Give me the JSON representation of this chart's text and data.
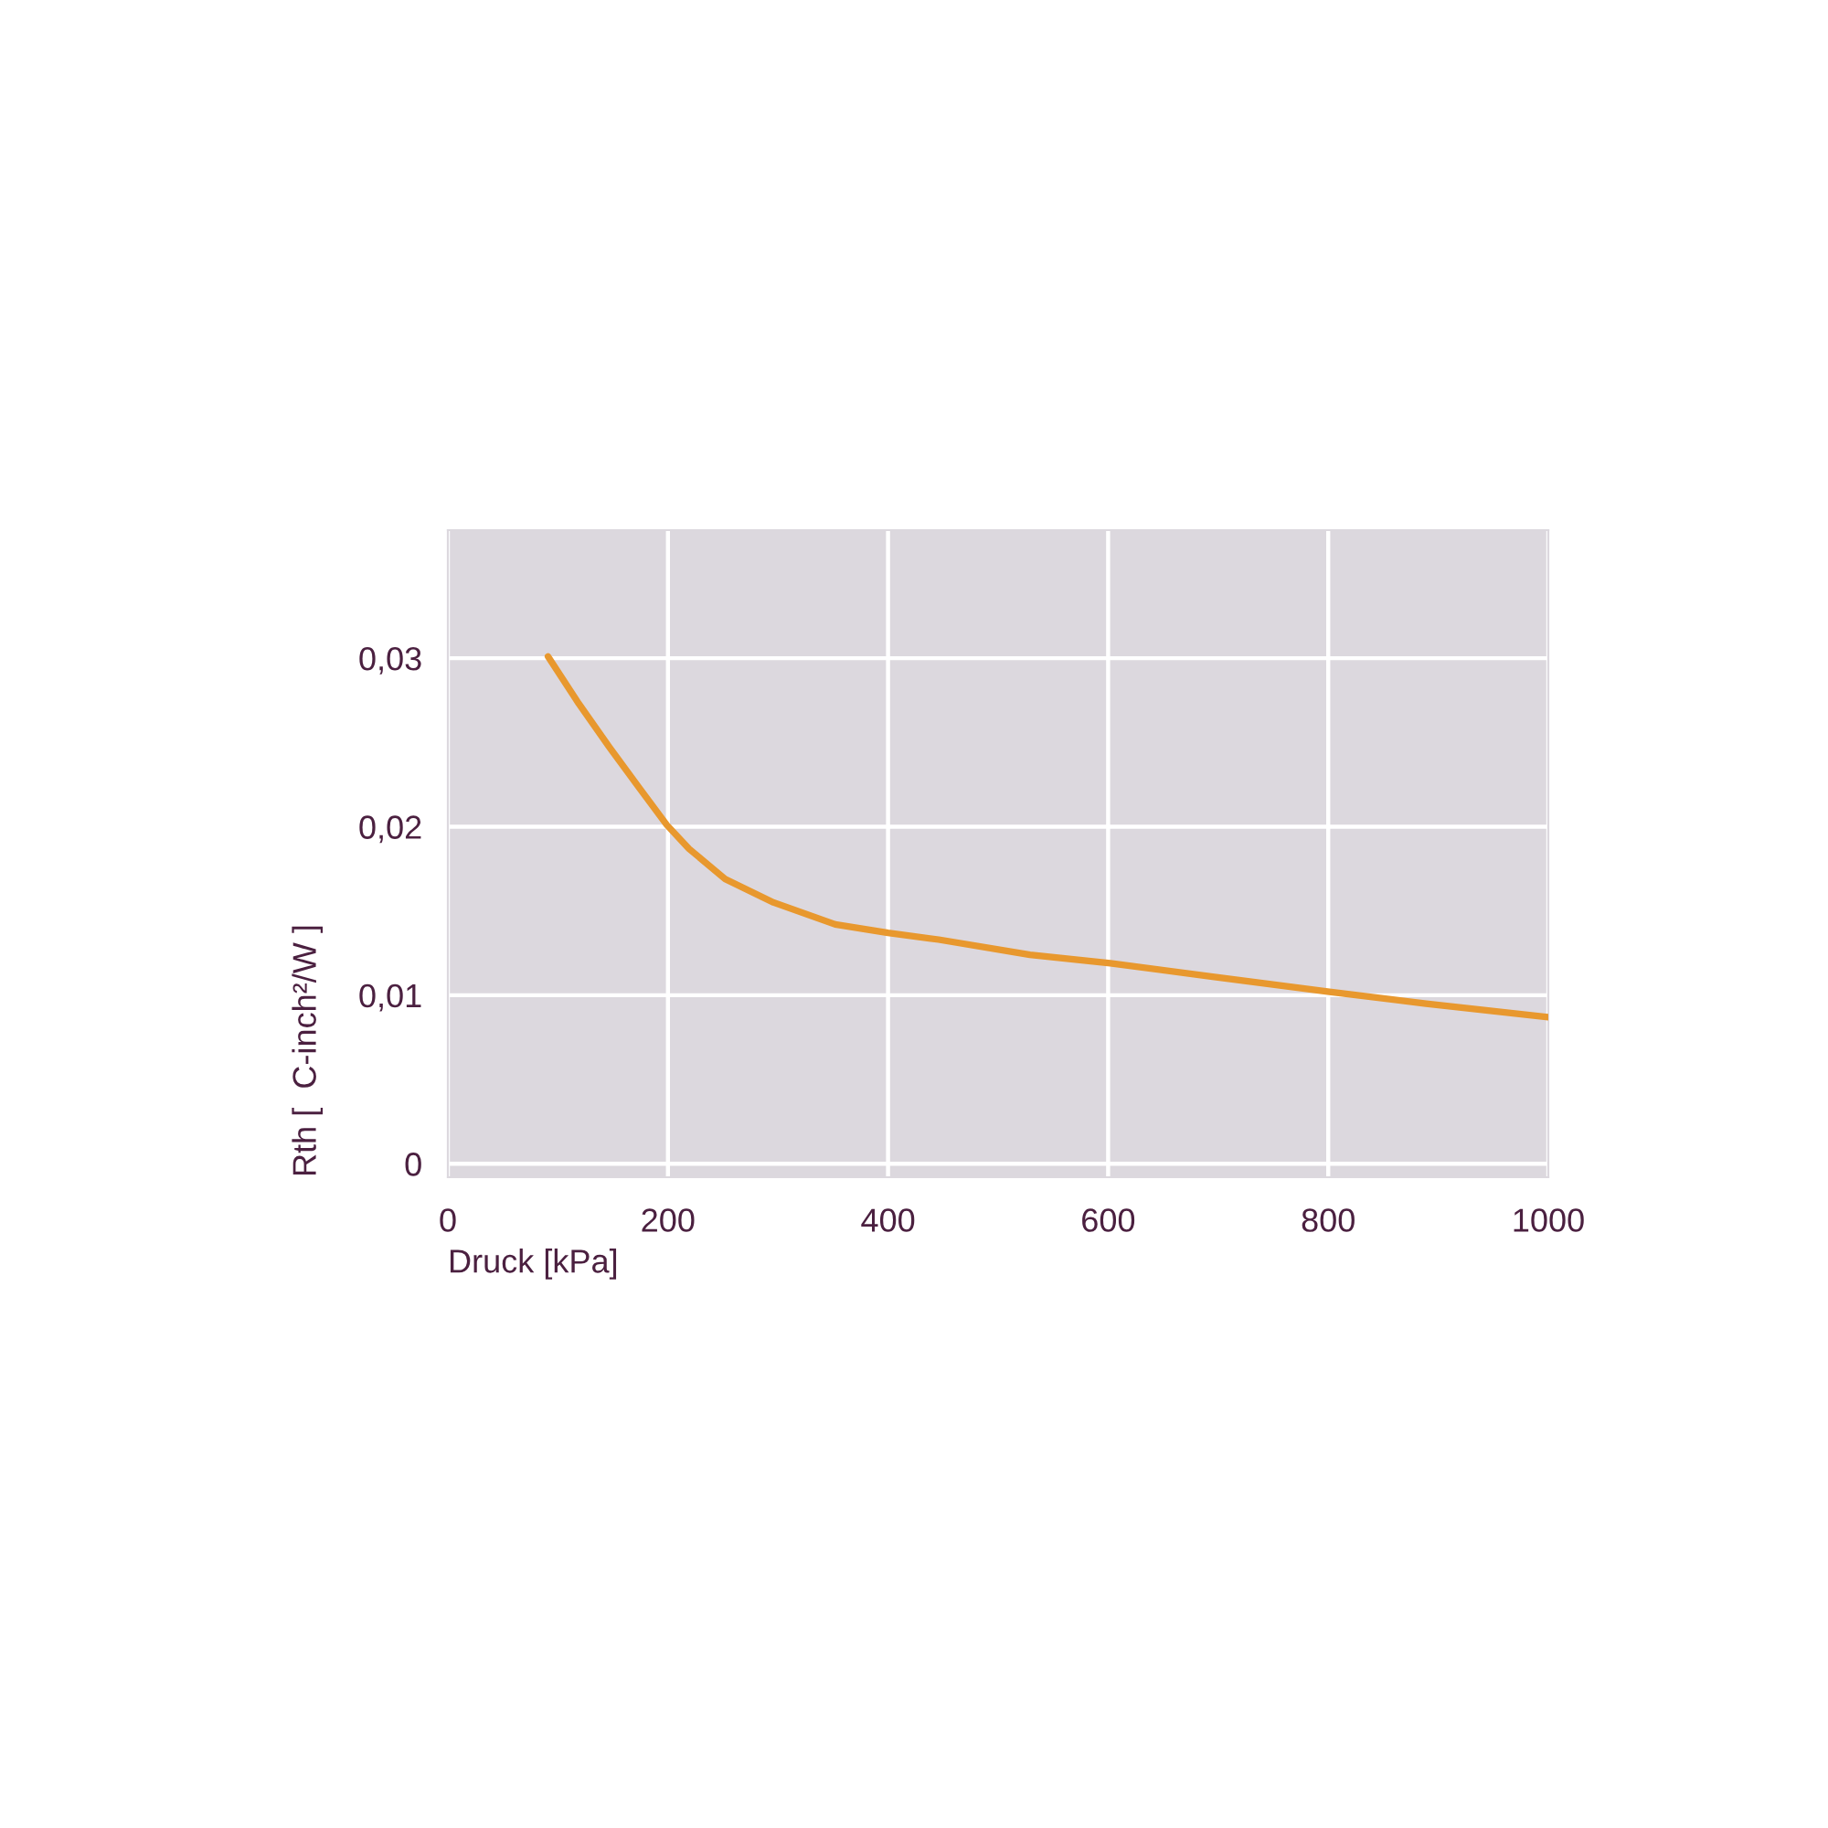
{
  "chart_data": {
    "type": "line",
    "xlabel": "Druck [kPa]",
    "ylabel": "Rth [  C-inch²/W ]",
    "x": [
      91,
      119,
      147,
      174,
      199,
      219,
      252,
      296,
      352,
      400,
      446,
      529,
      602,
      695,
      801,
      889,
      1000
    ],
    "series": [
      {
        "color": "#e8982e",
        "values": [
          0.0301,
          0.0273,
          0.0247,
          0.0223,
          0.0201,
          0.0187,
          0.0169,
          0.0155,
          0.0142,
          0.0137,
          0.0133,
          0.0124,
          0.0119,
          0.0111,
          0.0102,
          0.0095,
          0.0087
        ]
      }
    ],
    "xlim": [
      0,
      1000
    ],
    "xticks": [
      0,
      200,
      400,
      600,
      800,
      1000
    ],
    "ylim": [
      -0.0008,
      0.0376
    ],
    "yticks": [
      0,
      {
        "value": 0.01,
        "label": "0,01"
      },
      {
        "value": 0.02,
        "label": "0,02"
      },
      {
        "value": 0.03,
        "label": "0,03"
      }
    ],
    "grid": true,
    "line_style": "solid"
  }
}
